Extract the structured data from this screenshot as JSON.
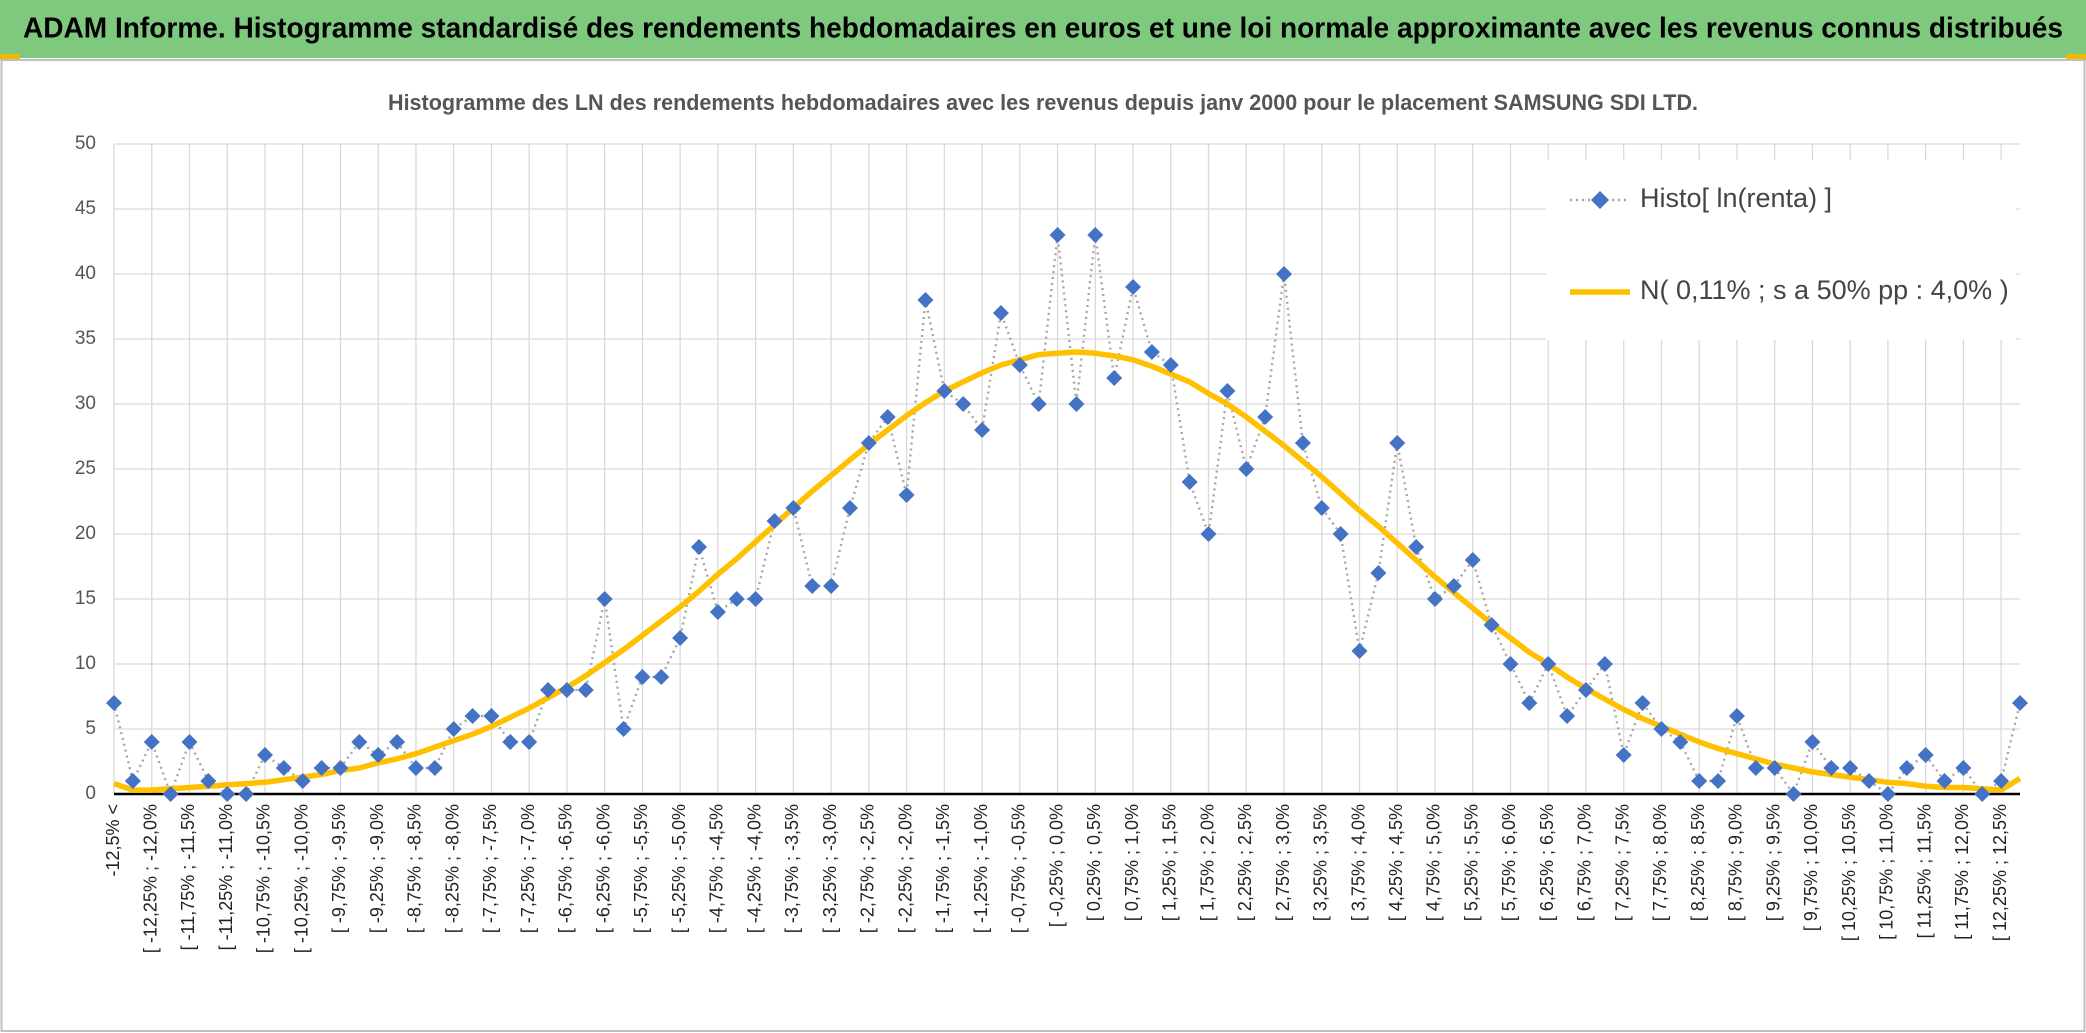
{
  "header": {
    "title": "ADAM Informe. Histogramme standardisé des rendements hebdomadaires en euros et une loi normale approximante avec les revenus connus distribués"
  },
  "chart_data": {
    "type": "line",
    "title": "Histogramme des LN des rendements hebdomadaires avec les revenus depuis janv 2000 pour le placement SAMSUNG SDI LTD.",
    "categories": [
      "-12,5% <",
      null,
      "[ -12,25% ; -12,0%",
      null,
      "[ -11,75% ; -11,5%",
      null,
      "[ -11,25% ; -11,0%",
      null,
      "[ -10,75% ; -10,5%",
      null,
      "[ -10,25% ; -10,0%",
      null,
      "[ -9,75% ; -9,5%",
      null,
      "[ -9,25% ; -9,0%",
      null,
      "[ -8,75% ; -8,5%",
      null,
      "[ -8,25% ; -8,0%",
      null,
      "[ -7,75% ; -7,5%",
      null,
      "[ -7,25% ; -7,0%",
      null,
      "[ -6,75% ; -6,5%",
      null,
      "[ -6,25% ; -6,0%",
      null,
      "[ -5,75% ; -5,5%",
      null,
      "[ -5,25% ; -5,0%",
      null,
      "[ -4,75% ; -4,5%",
      null,
      "[ -4,25% ; -4,0%",
      null,
      "[ -3,75% ; -3,5%",
      null,
      "[ -3,25% ; -3,0%",
      null,
      "[ -2,75% ; -2,5%",
      null,
      "[ -2,25% ; -2,0%",
      null,
      "[ -1,75% ; -1,5%",
      null,
      "[ -1,25% ; -1,0%",
      null,
      "[ -0,75% ; -0,5%",
      null,
      "[ -0,25% ; 0,0%",
      null,
      "[ 0,25% ; 0,5%",
      null,
      "[ 0,75% ; 1,0%",
      null,
      "[ 1,25% ; 1,5%",
      null,
      "[ 1,75% ; 2,0%",
      null,
      "[ 2,25% ; 2,5%",
      null,
      "[ 2,75% ; 3,0%",
      null,
      "[ 3,25% ; 3,5%",
      null,
      "[ 3,75% ; 4,0%",
      null,
      "[ 4,25% ; 4,5%",
      null,
      "[ 4,75% ; 5,0%",
      null,
      "[ 5,25% ; 5,5%",
      null,
      "[ 5,75% ; 6,0%",
      null,
      "[ 6,25% ; 6,5%",
      null,
      "[ 6,75% ; 7,0%",
      null,
      "[ 7,25% ; 7,5%",
      null,
      "[ 7,75% ; 8,0%",
      null,
      "[ 8,25% ; 8,5%",
      null,
      "[ 8,75% ; 9,0%",
      null,
      "[ 9,25% ; 9,5%",
      null,
      "[ 9,75% ; 10,0%",
      null,
      "[ 10,25% ; 10,5%",
      null,
      "[ 10,75% ; 11,0%",
      null,
      "[ 11,25% ; 11,5%",
      null,
      "[ 11,75% ; 12,0%",
      null,
      "[ 12,25% ; 12,5%",
      null
    ],
    "series": [
      {
        "name": "Histo[ ln(renta) ]",
        "color": "#4472c4",
        "line_color": "#a6a6a6",
        "marker": "diamond",
        "dashed": true,
        "values": [
          7,
          1,
          4,
          0,
          4,
          1,
          0,
          0,
          3,
          2,
          1,
          2,
          2,
          4,
          3,
          4,
          2,
          2,
          5,
          6,
          6,
          4,
          4,
          8,
          8,
          8,
          15,
          5,
          9,
          9,
          12,
          19,
          14,
          15,
          15,
          21,
          22,
          16,
          16,
          22,
          27,
          29,
          23,
          38,
          31,
          30,
          28,
          37,
          33,
          30,
          43,
          30,
          43,
          32,
          39,
          34,
          33,
          24,
          20,
          31,
          25,
          29,
          40,
          27,
          22,
          20,
          11,
          17,
          27,
          19,
          15,
          16,
          18,
          13,
          10,
          7,
          10,
          6,
          8,
          10,
          3,
          7,
          5,
          4,
          1,
          1,
          6,
          2,
          2,
          0,
          4,
          2,
          2,
          1,
          0,
          2,
          3,
          1,
          2,
          0,
          1,
          7
        ]
      },
      {
        "name": "N( 0,11% ; s a 50% pp : 4,0% )",
        "color": "#ffc000",
        "marker": "none",
        "dashed": false,
        "values": [
          0.8,
          0.3,
          0.3,
          0.4,
          0.5,
          0.6,
          0.7,
          0.8,
          0.9,
          1.1,
          1.3,
          1.5,
          1.8,
          2.0,
          2.4,
          2.7,
          3.1,
          3.6,
          4.1,
          4.6,
          5.2,
          5.9,
          6.6,
          7.4,
          8.2,
          9.1,
          10.1,
          11.1,
          12.2,
          13.3,
          14.4,
          15.6,
          16.9,
          18.1,
          19.4,
          20.7,
          22.0,
          23.3,
          24.5,
          25.7,
          26.9,
          28.0,
          29.1,
          30.1,
          31.0,
          31.7,
          32.4,
          33.0,
          33.4,
          33.8,
          33.9,
          34.0,
          33.9,
          33.7,
          33.4,
          32.9,
          32.3,
          31.7,
          30.8,
          30.0,
          29.0,
          27.9,
          26.8,
          25.6,
          24.4,
          23.1,
          21.8,
          20.6,
          19.3,
          18.0,
          16.7,
          15.5,
          14.3,
          13.1,
          12.0,
          10.9,
          10.0,
          9.0,
          8.1,
          7.3,
          6.5,
          5.8,
          5.2,
          4.6,
          4.0,
          3.5,
          3.1,
          2.7,
          2.3,
          2.0,
          1.7,
          1.5,
          1.3,
          1.1,
          0.9,
          0.8,
          0.6,
          0.5,
          0.5,
          0.4,
          0.3,
          1.2
        ]
      }
    ],
    "ylim": [
      0,
      50
    ],
    "yticks": [
      0,
      5,
      10,
      15,
      20,
      25,
      30,
      35,
      40,
      45,
      50
    ],
    "grid": true,
    "legend": "top-right"
  }
}
